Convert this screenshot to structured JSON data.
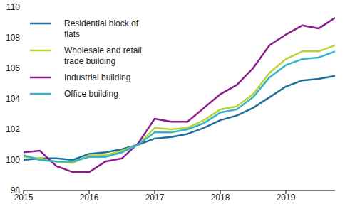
{
  "chart_data": {
    "type": "line",
    "x": [
      2015,
      2015.25,
      2015.5,
      2015.75,
      2016,
      2016.25,
      2016.5,
      2016.75,
      2017,
      2017.25,
      2017.5,
      2017.75,
      2018,
      2018.25,
      2018.5,
      2018.75,
      2019,
      2019.25,
      2019.5,
      2019.75
    ],
    "series": [
      {
        "name": "Residential block of flats",
        "color": "#1f6e9c",
        "values": [
          100.0,
          100.1,
          100.1,
          100.0,
          100.4,
          100.5,
          100.7,
          101.0,
          101.4,
          101.5,
          101.7,
          102.1,
          102.6,
          102.9,
          103.4,
          104.1,
          104.8,
          105.2,
          105.3,
          105.5
        ]
      },
      {
        "name": "Wholesale and retail trade building",
        "color": "#b7d433",
        "values": [
          100.2,
          100.1,
          99.9,
          99.8,
          100.3,
          100.3,
          100.6,
          101.0,
          102.1,
          102.0,
          102.1,
          102.6,
          103.3,
          103.5,
          104.3,
          105.7,
          106.6,
          107.1,
          107.1,
          107.5
        ]
      },
      {
        "name": "Industrial building",
        "color": "#8c1c8c",
        "values": [
          100.5,
          100.6,
          99.6,
          99.2,
          99.2,
          99.9,
          100.1,
          101.1,
          102.7,
          102.5,
          102.5,
          103.4,
          104.3,
          104.9,
          106.0,
          107.5,
          108.2,
          108.8,
          108.6,
          109.3
        ]
      },
      {
        "name": "Office building",
        "color": "#36b4c6",
        "values": [
          100.3,
          100.0,
          99.9,
          99.9,
          100.2,
          100.2,
          100.5,
          101.0,
          101.8,
          101.8,
          102.0,
          102.4,
          103.1,
          103.3,
          104.1,
          105.4,
          106.2,
          106.6,
          106.7,
          107.1
        ]
      }
    ],
    "xlim": [
      2015,
      2019.75
    ],
    "xticks": [
      2015,
      2016,
      2017,
      2018,
      2019
    ],
    "ylim": [
      98,
      110
    ],
    "yticks": [
      98,
      100,
      102,
      104,
      106,
      108,
      110
    ],
    "grid": false,
    "legend": "upper left"
  }
}
